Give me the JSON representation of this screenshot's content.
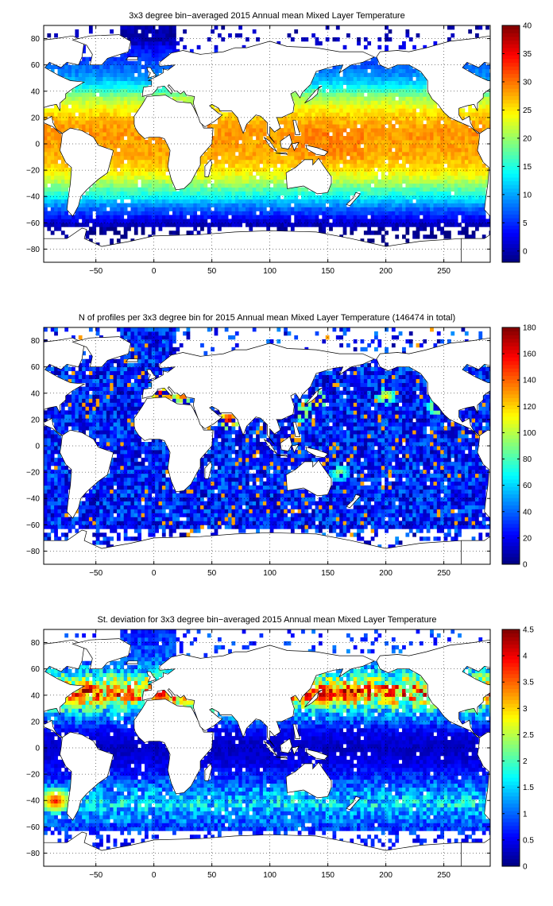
{
  "figure": {
    "panels": [
      {
        "title": "3x3 degree bin−averaged 2015 Annual mean Mixed Layer Temperature"
      },
      {
        "title": "N of profiles per 3x3 degree bin for 2015 Annual mean Mixed Layer Temperature  (146474 in total)"
      },
      {
        "title": "St. deviation for 3x3 degree bin−averaged 2015 Annual mean Mixed Layer Temperature"
      }
    ]
  },
  "chart_data": [
    {
      "type": "heatmap",
      "title": "3x3 degree bin−averaged 2015 Annual mean Mixed Layer Temperature",
      "xlabel": "",
      "ylabel": "",
      "xlim": [
        -95,
        290
      ],
      "ylim": [
        -90,
        90
      ],
      "xticks": [
        -50,
        0,
        50,
        100,
        150,
        200,
        250
      ],
      "yticks": [
        -80,
        -60,
        -40,
        -20,
        0,
        20,
        40,
        60,
        80
      ],
      "xticklabels": [
        "−50",
        "0",
        "50",
        "100",
        "150",
        "200",
        "250"
      ],
      "yticklabels": [
        "−80",
        "−60",
        "−40",
        "−20",
        "0",
        "20",
        "40",
        "60",
        "80"
      ],
      "grid": true,
      "colorbar": {
        "min": -2,
        "max": 40,
        "ticks": [
          0,
          5,
          10,
          15,
          20,
          25,
          30,
          35,
          40
        ],
        "colormap": "jet"
      },
      "lat_profile": [
        [
          -72,
          -1.5
        ],
        [
          -66,
          -1.2
        ],
        [
          -60,
          1
        ],
        [
          -55,
          4
        ],
        [
          -50,
          7
        ],
        [
          -45,
          10
        ],
        [
          -40,
          14
        ],
        [
          -35,
          17
        ],
        [
          -30,
          20
        ],
        [
          -25,
          23
        ],
        [
          -20,
          25
        ],
        [
          -15,
          26.5
        ],
        [
          -10,
          27.5
        ],
        [
          -5,
          28
        ],
        [
          0,
          28
        ],
        [
          5,
          28.5
        ],
        [
          10,
          28.5
        ],
        [
          15,
          28
        ],
        [
          20,
          26.5
        ],
        [
          25,
          25
        ],
        [
          30,
          23
        ],
        [
          35,
          20.5
        ],
        [
          40,
          17
        ],
        [
          45,
          13
        ],
        [
          50,
          10
        ],
        [
          55,
          8.5
        ],
        [
          60,
          7
        ],
        [
          65,
          5.5
        ],
        [
          70,
          4
        ],
        [
          75,
          2
        ],
        [
          80,
          0
        ]
      ],
      "bin_size_deg": 3
    },
    {
      "type": "heatmap",
      "title": "N of profiles per 3x3 degree bin for 2015 Annual mean Mixed Layer Temperature  (146474 in total)",
      "xlabel": "",
      "ylabel": "",
      "xlim": [
        -95,
        290
      ],
      "ylim": [
        -90,
        90
      ],
      "xticks": [
        -50,
        0,
        50,
        100,
        150,
        200,
        250
      ],
      "yticks": [
        -80,
        -60,
        -40,
        -20,
        0,
        20,
        40,
        60,
        80
      ],
      "xticklabels": [
        "−50",
        "0",
        "50",
        "100",
        "150",
        "200",
        "250"
      ],
      "yticklabels": [
        "−80",
        "−60",
        "−40",
        "−20",
        "0",
        "20",
        "40",
        "60",
        "80"
      ],
      "grid": true,
      "total_profiles": 146474,
      "colorbar": {
        "min": 0,
        "max": 180,
        "ticks": [
          0,
          20,
          40,
          60,
          80,
          100,
          120,
          140,
          160,
          180
        ],
        "colormap": "jet"
      },
      "typical_count": 25,
      "hotspots": [
        [
          40,
          5,
          165
        ],
        [
          40,
          25,
          170
        ],
        [
          20,
          65,
          175
        ],
        [
          35,
          140,
          150
        ],
        [
          38,
          200,
          120
        ],
        [
          30,
          245,
          130
        ],
        [
          -20,
          160,
          100
        ],
        [
          25,
          128,
          120
        ]
      ],
      "bin_size_deg": 3
    },
    {
      "type": "heatmap",
      "title": "St. deviation for 3x3 degree bin−averaged 2015 Annual mean Mixed Layer Temperature",
      "xlabel": "",
      "ylabel": "",
      "xlim": [
        -95,
        290
      ],
      "ylim": [
        -90,
        90
      ],
      "xticks": [
        -50,
        0,
        50,
        100,
        150,
        200,
        250
      ],
      "yticks": [
        -80,
        -60,
        -40,
        -20,
        0,
        20,
        40,
        60,
        80
      ],
      "xticklabels": [
        "−50",
        "0",
        "50",
        "100",
        "150",
        "200",
        "250"
      ],
      "yticklabels": [
        "−80",
        "−60",
        "−40",
        "−20",
        "0",
        "20",
        "40",
        "60",
        "80"
      ],
      "grid": true,
      "colorbar": {
        "min": 0,
        "max": 4.5,
        "ticks": [
          0,
          0.5,
          1,
          1.5,
          2,
          2.5,
          3,
          3.5,
          4,
          4.5
        ],
        "colormap": "jet"
      },
      "lat_profile": [
        [
          -72,
          0.6
        ],
        [
          -60,
          0.9
        ],
        [
          -50,
          1.2
        ],
        [
          -42,
          1.6
        ],
        [
          -35,
          1.3
        ],
        [
          -25,
          0.9
        ],
        [
          -15,
          0.5
        ],
        [
          -5,
          0.35
        ],
        [
          0,
          0.3
        ],
        [
          5,
          0.35
        ],
        [
          15,
          0.6
        ],
        [
          25,
          1.3
        ],
        [
          32,
          2.0
        ],
        [
          38,
          3.0
        ],
        [
          44,
          3.3
        ],
        [
          50,
          2.5
        ],
        [
          58,
          1.5
        ],
        [
          65,
          1.0
        ],
        [
          80,
          0.8
        ]
      ],
      "hotspots": [
        [
          40,
          145,
          4.5
        ],
        [
          42,
          170,
          3.8
        ],
        [
          40,
          5,
          4.2
        ],
        [
          40,
          30,
          4.0
        ],
        [
          38,
          -70,
          3.5
        ],
        [
          -40,
          -85,
          4.0
        ]
      ],
      "bin_size_deg": 3
    }
  ],
  "colors": {
    "background": "#ffffff",
    "land": "#ffffff",
    "coast": "#000000",
    "grid": "#000000"
  }
}
